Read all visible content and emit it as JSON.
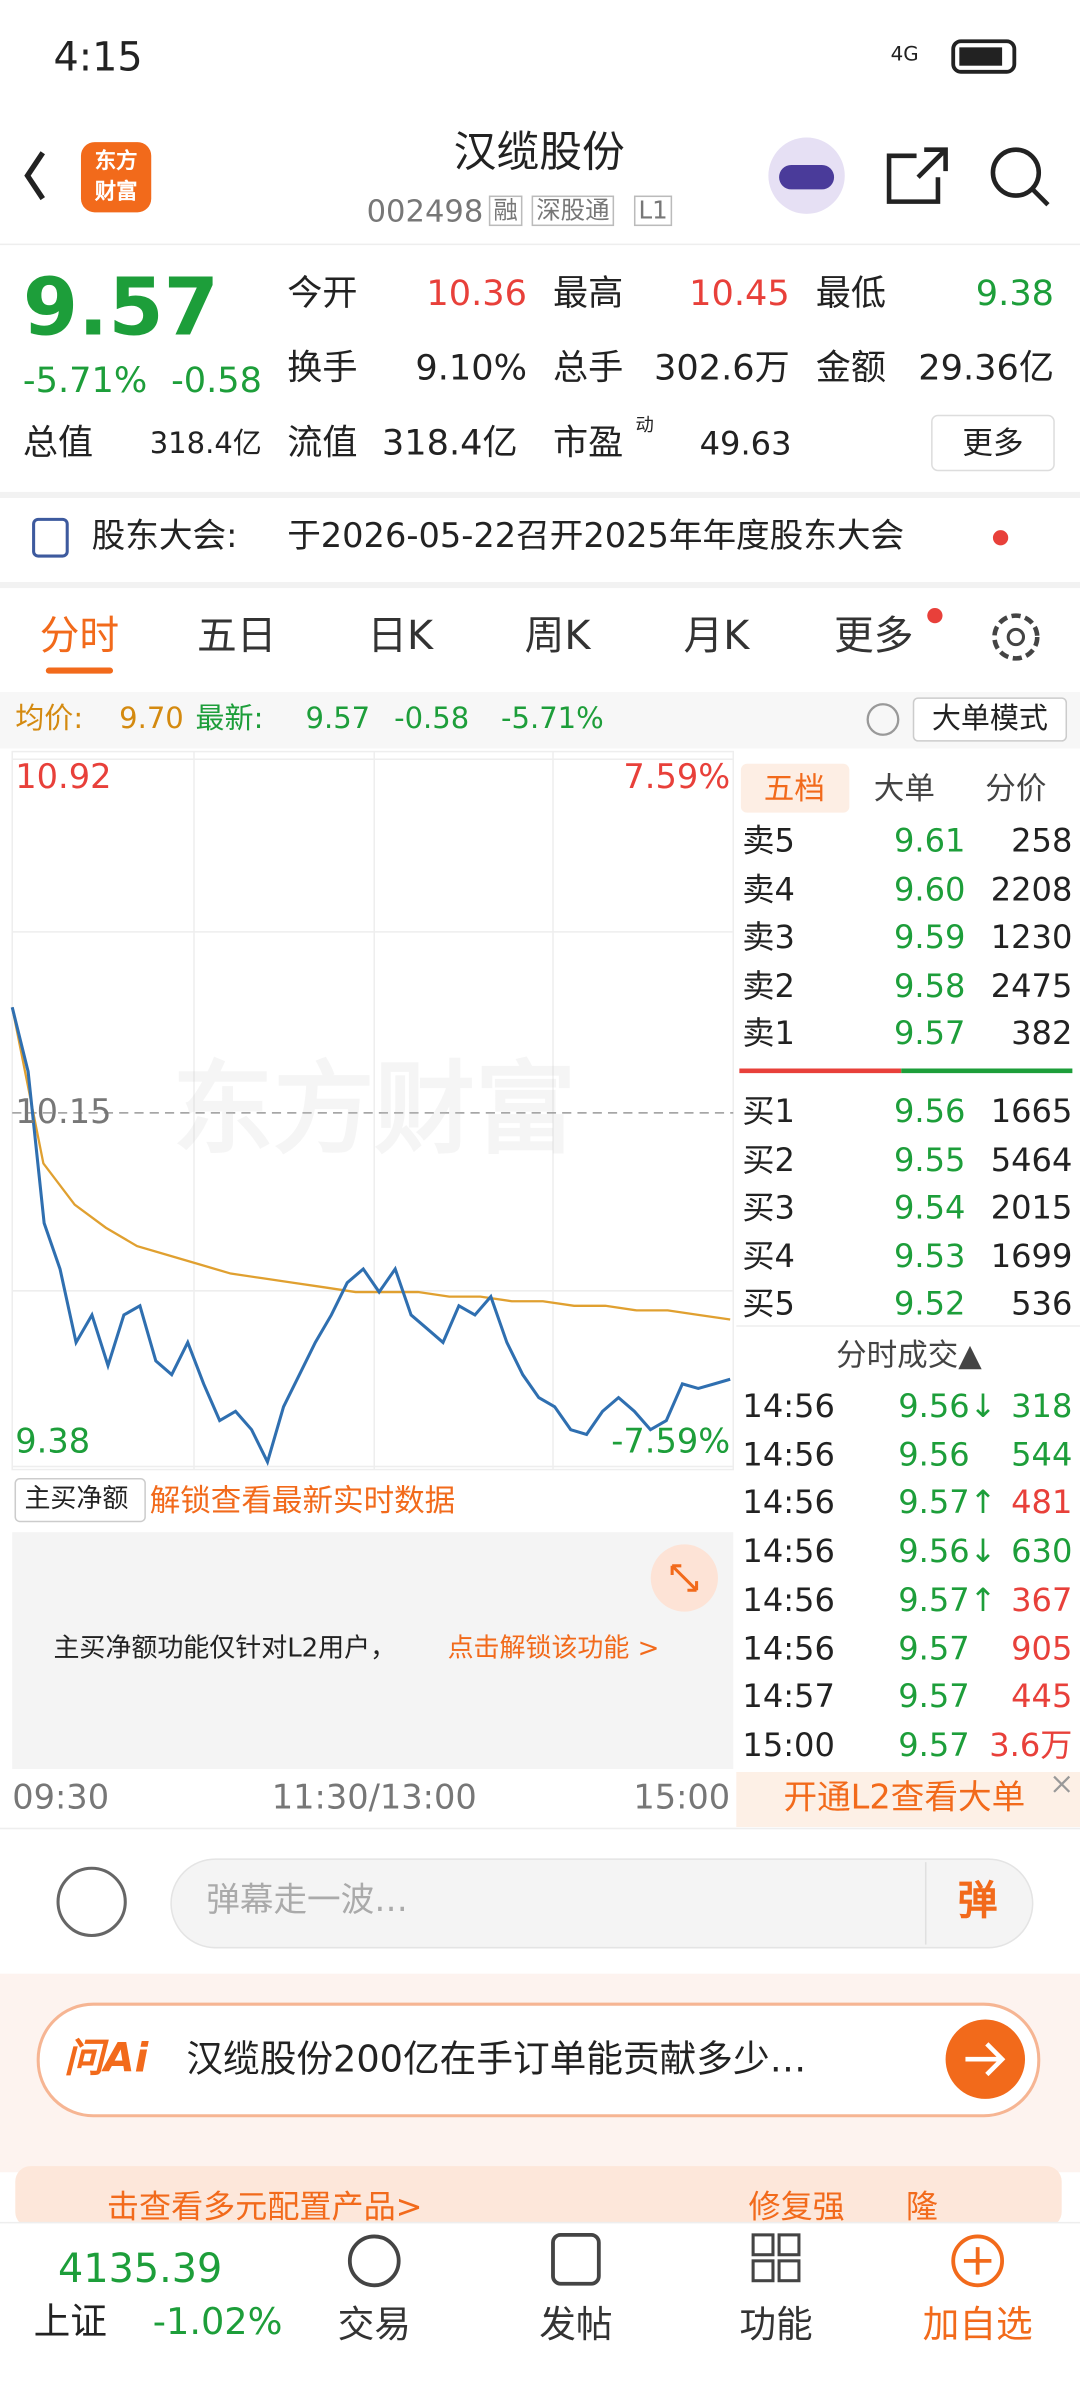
{
  "status_bar": {
    "time": "4:15",
    "network": "4G"
  },
  "header": {
    "logo": [
      "东方",
      "财富"
    ],
    "title": "汉缆股份",
    "code": "002498",
    "tags": [
      "融",
      "深股通",
      "L1"
    ]
  },
  "quote": {
    "price": "9.57",
    "change_pct": "-5.71%",
    "change": "-0.58",
    "fields": [
      {
        "label": "今开",
        "value": "10.36",
        "color": "#e8403a"
      },
      {
        "label": "最高",
        "value": "10.45",
        "color": "#e8403a"
      },
      {
        "label": "最低",
        "value": "9.38",
        "color": "#1d9e3a"
      },
      {
        "label": "换手",
        "value": "9.10%",
        "color": "#222"
      },
      {
        "label": "总手",
        "value": "302.6万",
        "color": "#222"
      },
      {
        "label": "金额",
        "value": "29.36亿",
        "color": "#222"
      }
    ],
    "total_cap_label": "总值",
    "total_cap": "318.4亿",
    "float_cap_label": "流值",
    "float_cap": "318.4亿",
    "pe_label": "市盈",
    "pe_sup": "动",
    "pe": "49.63",
    "more": "更多"
  },
  "notice": {
    "label": "股东大会:",
    "text": "于2026-05-22召开2025年年度股东大会"
  },
  "tabs": [
    "分时",
    "五日",
    "日K",
    "周K",
    "月K",
    "更多"
  ],
  "info_bar": {
    "avg_label": "均价:",
    "avg": "9.70",
    "latest_label": "最新:",
    "latest": "9.57",
    "change": "-0.58",
    "change_pct": "-5.71%",
    "mode": "大单模式"
  },
  "chart": {
    "ylim": [
      9.38,
      10.92
    ],
    "yticks": [
      9.38,
      10.15,
      10.92
    ],
    "pct_top": "7.59%",
    "pct_bottom": "-7.59%",
    "watermark": "东方财富",
    "x_labels": [
      "09:30",
      "11:30/13:00",
      "15:00"
    ],
    "price": {
      "color": "#2f6fb0",
      "values": [
        10.38,
        10.24,
        9.91,
        9.81,
        9.65,
        9.71,
        9.6,
        9.71,
        9.73,
        9.61,
        9.58,
        9.65,
        9.56,
        9.48,
        9.5,
        9.46,
        9.39,
        9.51,
        9.58,
        9.65,
        9.71,
        9.78,
        9.81,
        9.76,
        9.81,
        9.71,
        9.68,
        9.65,
        9.73,
        9.71,
        9.75,
        9.65,
        9.58,
        9.53,
        9.51,
        9.46,
        9.45,
        9.5,
        9.53,
        9.5,
        9.46,
        9.48,
        9.56,
        9.55,
        9.56,
        9.57
      ]
    },
    "avg": {
      "color": "#e0a030",
      "values": [
        10.38,
        10.04,
        9.95,
        9.9,
        9.86,
        9.84,
        9.82,
        9.8,
        9.79,
        9.78,
        9.77,
        9.76,
        9.76,
        9.76,
        9.75,
        9.75,
        9.74,
        9.74,
        9.73,
        9.73,
        9.72,
        9.72,
        9.71,
        9.7
      ]
    }
  },
  "net_buy": {
    "dropdown": "主买净额",
    "unlock": "解锁查看最新实时数据",
    "notice": "主买净额功能仅针对L2用户，",
    "link": "点击解锁该功能 >"
  },
  "order_book": {
    "tabs": [
      "五档",
      "大单",
      "分价"
    ],
    "sell": [
      {
        "label": "卖5",
        "price": "9.61",
        "volume": "258"
      },
      {
        "label": "卖4",
        "price": "9.60",
        "volume": "2208"
      },
      {
        "label": "卖3",
        "price": "9.59",
        "volume": "1230"
      },
      {
        "label": "卖2",
        "price": "9.58",
        "volume": "2475"
      },
      {
        "label": "卖1",
        "price": "9.57",
        "volume": "382"
      }
    ],
    "buy": [
      {
        "label": "买1",
        "price": "9.56",
        "volume": "1665"
      },
      {
        "label": "买2",
        "price": "9.55",
        "volume": "5464"
      },
      {
        "label": "买3",
        "price": "9.54",
        "volume": "2015"
      },
      {
        "label": "买4",
        "price": "9.53",
        "volume": "1699"
      },
      {
        "label": "买5",
        "price": "9.52",
        "volume": "536"
      }
    ],
    "trades_title": "分时成交▲",
    "trades": [
      {
        "time": "14:56",
        "price": "9.56↓",
        "volume": "318",
        "color": "#1d9e3a"
      },
      {
        "time": "14:56",
        "price": "9.56",
        "volume": "544",
        "color": "#1d9e3a"
      },
      {
        "time": "14:56",
        "price": "9.57↑",
        "volume": "481",
        "color": "#e8403a"
      },
      {
        "time": "14:56",
        "price": "9.56↓",
        "volume": "630",
        "color": "#1d9e3a"
      },
      {
        "time": "14:56",
        "price": "9.57↑",
        "volume": "367",
        "color": "#e8403a"
      },
      {
        "time": "14:56",
        "price": "9.57",
        "volume": "905",
        "color": "#e8403a"
      },
      {
        "time": "14:57",
        "price": "9.57",
        "volume": "445",
        "color": "#e8403a"
      },
      {
        "time": "15:00",
        "price": "9.57",
        "volume": "3.6万",
        "color": "#e8403a"
      }
    ],
    "l2_banner": "开通L2查看大单"
  },
  "danmu": {
    "placeholder": "弹幕走一波…",
    "button": "弹"
  },
  "ai": {
    "logo": "问Ai",
    "question": "汉缆股份200亿在手订单能贡献多少…"
  },
  "banner": {
    "text": "击查看多元配置产品>",
    "tag": "修复强",
    "tag2": "隆"
  },
  "bottom_nav": {
    "index_value": "4135.39",
    "index_name": "上证",
    "index_change": "-1.02%",
    "items": [
      "交易",
      "发帖",
      "功能",
      "加自选"
    ]
  }
}
